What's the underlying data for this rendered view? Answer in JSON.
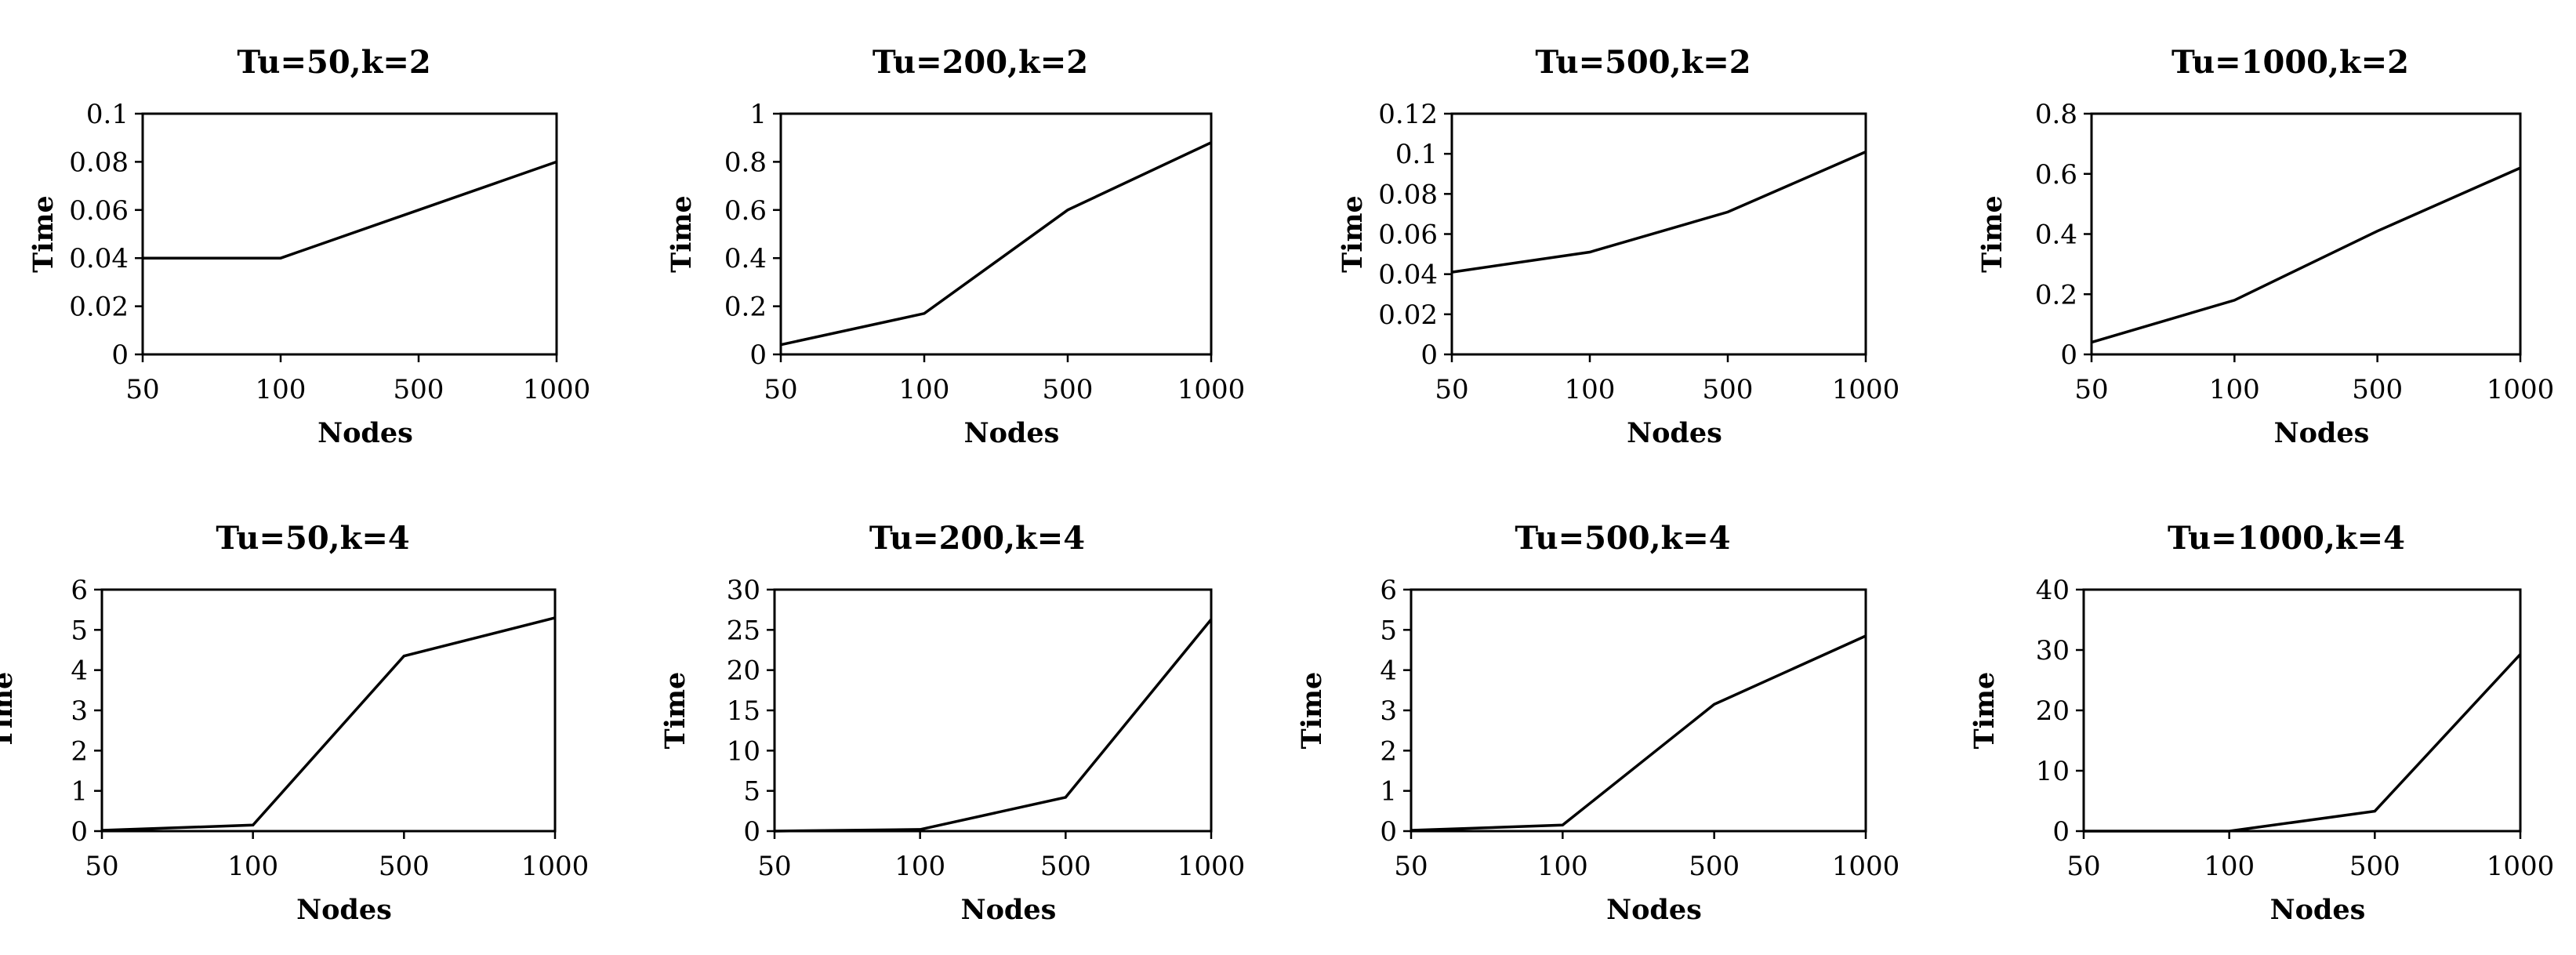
{
  "chart_data": [
    {
      "type": "line",
      "title": "Tu=50,k=2",
      "xlabel": "Nodes",
      "ylabel": "Time",
      "categories": [
        "50",
        "100",
        "500",
        "1000"
      ],
      "ylim": [
        0,
        0.1
      ],
      "yticks": [
        "0",
        "0.02",
        "0.04",
        "0.06",
        "0.08",
        "0.1"
      ],
      "grid": false,
      "series": [
        {
          "values": [
            0.04,
            0.04,
            0.06,
            0.08
          ]
        }
      ]
    },
    {
      "type": "line",
      "title": "Tu=200,k=2",
      "xlabel": "Nodes",
      "ylabel": "Time",
      "categories": [
        "50",
        "100",
        "500",
        "1000"
      ],
      "ylim": [
        0,
        1
      ],
      "yticks": [
        "0",
        "0.2",
        "0.4",
        "0.6",
        "0.8",
        "1"
      ],
      "grid": false,
      "series": [
        {
          "values": [
            0.04,
            0.17,
            0.6,
            0.88
          ]
        }
      ]
    },
    {
      "type": "line",
      "title": "Tu=500,k=2",
      "xlabel": "Nodes",
      "ylabel": "Time",
      "categories": [
        "50",
        "100",
        "500",
        "1000"
      ],
      "ylim": [
        0,
        0.12
      ],
      "yticks": [
        "0",
        "0.02",
        "0.04",
        "0.06",
        "0.08",
        "0.1",
        "0.12"
      ],
      "grid": false,
      "series": [
        {
          "values": [
            0.041,
            0.051,
            0.071,
            0.101
          ]
        }
      ]
    },
    {
      "type": "line",
      "title": "Tu=1000,k=2",
      "xlabel": "Nodes",
      "ylabel": "Time",
      "categories": [
        "50",
        "100",
        "500",
        "1000"
      ],
      "ylim": [
        0,
        0.8
      ],
      "yticks": [
        "0",
        "0.2",
        "0.4",
        "0.6",
        "0.8"
      ],
      "grid": false,
      "series": [
        {
          "values": [
            0.04,
            0.18,
            0.41,
            0.62
          ]
        }
      ]
    },
    {
      "type": "line",
      "title": "Tu=50,k=4",
      "xlabel": "Nodes",
      "ylabel": "Time",
      "categories": [
        "50",
        "100",
        "500",
        "1000"
      ],
      "ylim": [
        0,
        6
      ],
      "yticks": [
        "0",
        "1",
        "2",
        "3",
        "4",
        "5",
        "6"
      ],
      "grid": false,
      "series": [
        {
          "values": [
            0.02,
            0.15,
            4.35,
            5.3
          ]
        }
      ]
    },
    {
      "type": "line",
      "title": "Tu=200,k=4",
      "xlabel": "Nodes",
      "ylabel": "Time",
      "categories": [
        "50",
        "100",
        "500",
        "1000"
      ],
      "ylim": [
        0,
        30
      ],
      "yticks": [
        "0",
        "5",
        "10",
        "15",
        "20",
        "25",
        "30"
      ],
      "grid": false,
      "series": [
        {
          "values": [
            0,
            0.2,
            4.2,
            26.3
          ]
        }
      ]
    },
    {
      "type": "line",
      "title": "Tu=500,k=4",
      "xlabel": "Nodes",
      "ylabel": "Time",
      "categories": [
        "50",
        "100",
        "500",
        "1000"
      ],
      "ylim": [
        0,
        6
      ],
      "yticks": [
        "0",
        "1",
        "2",
        "3",
        "4",
        "5",
        "6"
      ],
      "grid": false,
      "series": [
        {
          "values": [
            0.02,
            0.15,
            3.15,
            4.85
          ]
        }
      ]
    },
    {
      "type": "line",
      "title": "Tu=1000,k=4",
      "xlabel": "Nodes",
      "ylabel": "Time",
      "categories": [
        "50",
        "100",
        "500",
        "1000"
      ],
      "ylim": [
        0,
        40
      ],
      "yticks": [
        "0",
        "10",
        "20",
        "30",
        "40"
      ],
      "grid": false,
      "series": [
        {
          "values": [
            0,
            0,
            3.3,
            29.3
          ]
        }
      ]
    }
  ]
}
